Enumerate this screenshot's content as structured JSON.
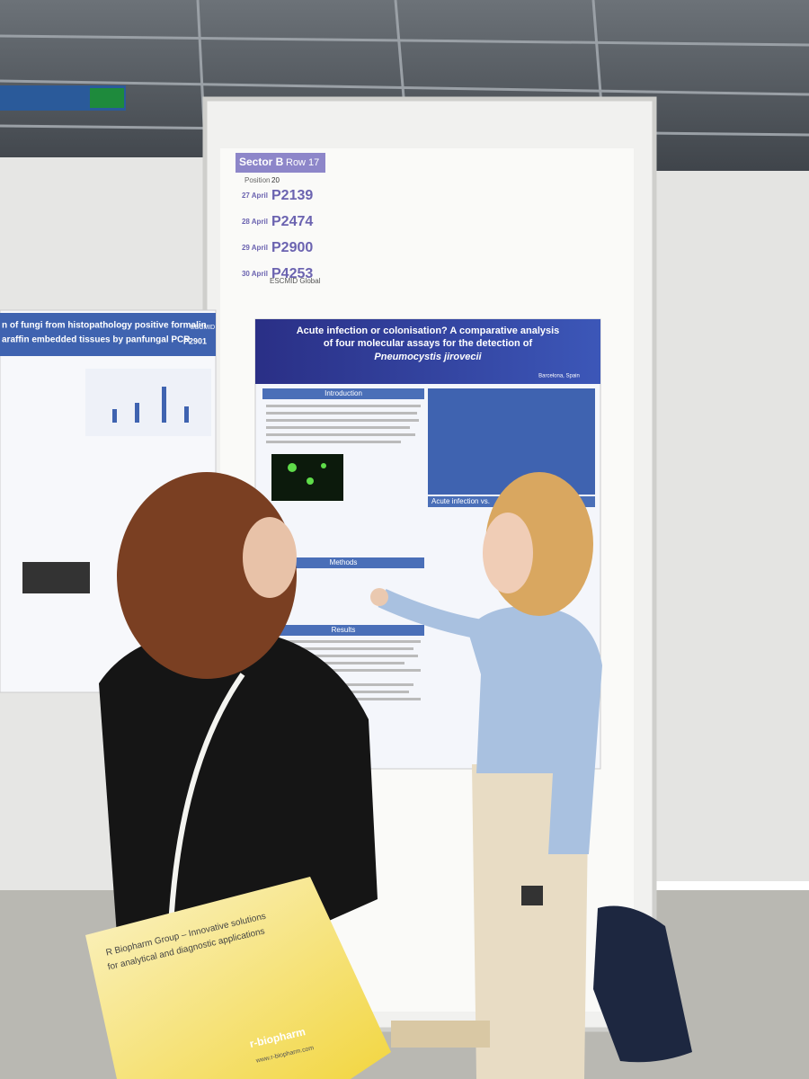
{
  "board": {
    "sector": "Sector B",
    "row": "Row 17",
    "position_label": "Position",
    "position": 20,
    "schedule": [
      {
        "date": "27 April",
        "code": "P2139"
      },
      {
        "date": "28 April",
        "code": "P2474"
      },
      {
        "date": "29 April",
        "code": "P2900"
      },
      {
        "date": "30 April",
        "code": "P4253"
      }
    ],
    "organizer": "ESCMID Global"
  },
  "poster": {
    "title_line1": "Acute infection or colonisation? A comparative analysis",
    "title_line2": "of four molecular assays for the detection of",
    "title_line3": "Pneumocystis jirovecii",
    "sections": [
      "Introduction",
      "Methods",
      "Results"
    ],
    "side_heading": "Acute infection vs.",
    "venue": "Barcelona, Spain"
  },
  "left_poster": {
    "title_line1": "n of fungi from histopathology positive formalin",
    "title_line2": "araffin embedded tissues by panfungal PCR",
    "code": "P2901",
    "organizer": "ESCMID"
  },
  "bag": {
    "line1": "R Biopharm Group – Innovative solutions",
    "line2": "for analytical and diagnostic applications",
    "brand": "r-biopharm",
    "url": "www.r-biopharm.com"
  }
}
